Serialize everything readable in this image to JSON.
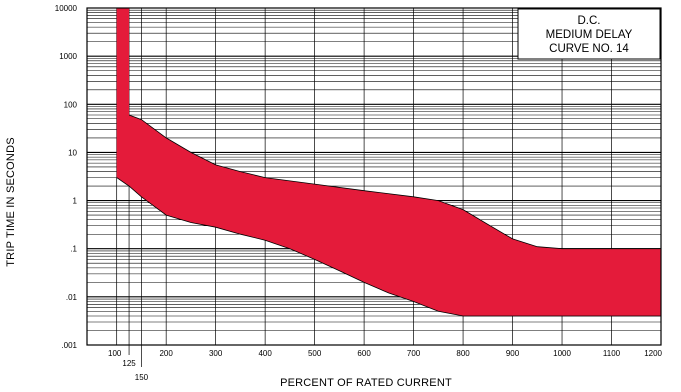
{
  "chart_data": {
    "type": "area",
    "title_box": [
      "D.C.",
      "MEDIUM DELAY",
      "CURVE NO. 14"
    ],
    "xlabel": "PERCENT OF RATED CURRENT",
    "ylabel": "TRIP TIME IN SECONDS",
    "x_scale": "linear",
    "y_scale": "log",
    "xlim": [
      0,
      1200
    ],
    "ylim": [
      0.001,
      10000
    ],
    "x_tick_labels": [
      {
        "value": 100,
        "label": "100"
      },
      {
        "value": 125,
        "label": "125"
      },
      {
        "value": 150,
        "label": "150"
      },
      {
        "value": 200,
        "label": "200"
      },
      {
        "value": 300,
        "label": "300"
      },
      {
        "value": 400,
        "label": "400"
      },
      {
        "value": 500,
        "label": "500"
      },
      {
        "value": 600,
        "label": "600"
      },
      {
        "value": 700,
        "label": "700"
      },
      {
        "value": 800,
        "label": "800"
      },
      {
        "value": 900,
        "label": "900"
      },
      {
        "value": 1000,
        "label": "1000"
      },
      {
        "value": 1100,
        "label": "1100"
      },
      {
        "value": 1200,
        "label": "1200"
      }
    ],
    "y_tick_labels": [
      {
        "value": 10000,
        "label": "10000"
      },
      {
        "value": 1000,
        "label": "1000"
      },
      {
        "value": 100,
        "label": "100"
      },
      {
        "value": 10,
        "label": "10"
      },
      {
        "value": 1,
        "label": "1"
      },
      {
        "value": 0.1,
        "label": ".1"
      },
      {
        "value": 0.01,
        "label": ".01"
      },
      {
        "value": 0.001,
        "label": ".001"
      }
    ],
    "grid": true,
    "band_color": "#E41B3A",
    "upper_curve": [
      [
        100,
        10000
      ],
      [
        125,
        10000
      ],
      [
        125,
        60
      ],
      [
        150,
        48
      ],
      [
        200,
        20
      ],
      [
        250,
        10
      ],
      [
        300,
        5.5
      ],
      [
        350,
        4
      ],
      [
        400,
        3
      ],
      [
        500,
        2.2
      ],
      [
        600,
        1.6
      ],
      [
        700,
        1.2
      ],
      [
        750,
        1.0
      ],
      [
        800,
        0.65
      ],
      [
        850,
        0.32
      ],
      [
        900,
        0.16
      ],
      [
        950,
        0.11
      ],
      [
        1000,
        0.1
      ],
      [
        1200,
        0.1
      ]
    ],
    "lower_curve": [
      [
        100,
        10000
      ],
      [
        100,
        3
      ],
      [
        125,
        2
      ],
      [
        150,
        1.2
      ],
      [
        200,
        0.5
      ],
      [
        250,
        0.35
      ],
      [
        300,
        0.28
      ],
      [
        350,
        0.2
      ],
      [
        400,
        0.15
      ],
      [
        450,
        0.1
      ],
      [
        500,
        0.06
      ],
      [
        550,
        0.035
      ],
      [
        600,
        0.02
      ],
      [
        650,
        0.012
      ],
      [
        700,
        0.008
      ],
      [
        750,
        0.005
      ],
      [
        800,
        0.004
      ],
      [
        1200,
        0.004
      ]
    ]
  }
}
